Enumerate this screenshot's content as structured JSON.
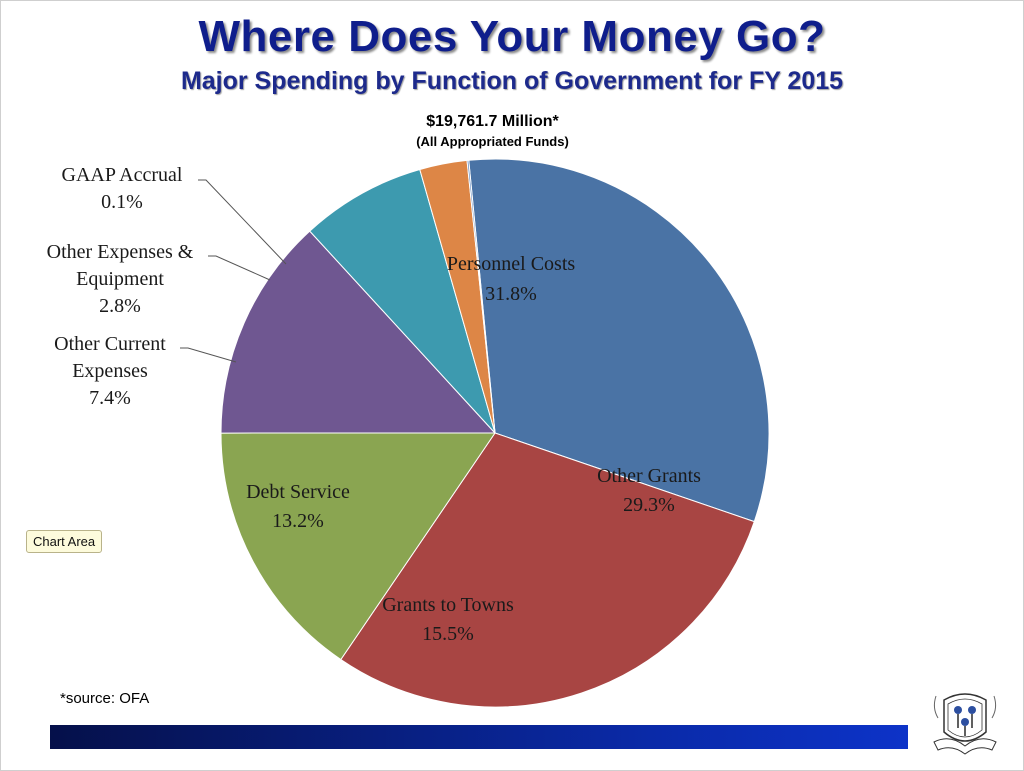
{
  "header": {
    "title": "Where Does Your Money Go?",
    "subtitle": "Major Spending by Function of Government for FY 2015"
  },
  "totals": {
    "amount": "$19,761.7 Million*",
    "note": "(All Appropriated Funds)"
  },
  "tooltip": {
    "label": "Chart Area"
  },
  "footer": {
    "source": "*source: OFA"
  },
  "chart_data": {
    "type": "pie",
    "title": "Where Does Your Money Go?",
    "subtitle": "Major Spending by Function of Government for FY 2015",
    "total": "$19,761.7 Million*",
    "slices": [
      {
        "label": "Personnel Costs",
        "value": 31.8,
        "display": "31.8%",
        "color": "#4a73a5"
      },
      {
        "label": "Other Grants",
        "value": 29.3,
        "display": "29.3%",
        "color": "#a84543"
      },
      {
        "label": "Grants to Towns",
        "value": 15.5,
        "display": "15.5%",
        "color": "#8aa551"
      },
      {
        "label": "Debt Service",
        "value": 13.2,
        "display": "13.2%",
        "color": "#6f5791"
      },
      {
        "label": "Other Current Expenses",
        "value": 7.4,
        "display": "7.4%",
        "color": "#3d9aaf"
      },
      {
        "label": "Other Expenses & Equipment",
        "value": 2.8,
        "display": "2.8%",
        "color": "#dd8646"
      },
      {
        "label": "GAAP Accrual",
        "value": 0.1,
        "display": "0.1%",
        "color": "#5f88c0"
      }
    ]
  }
}
